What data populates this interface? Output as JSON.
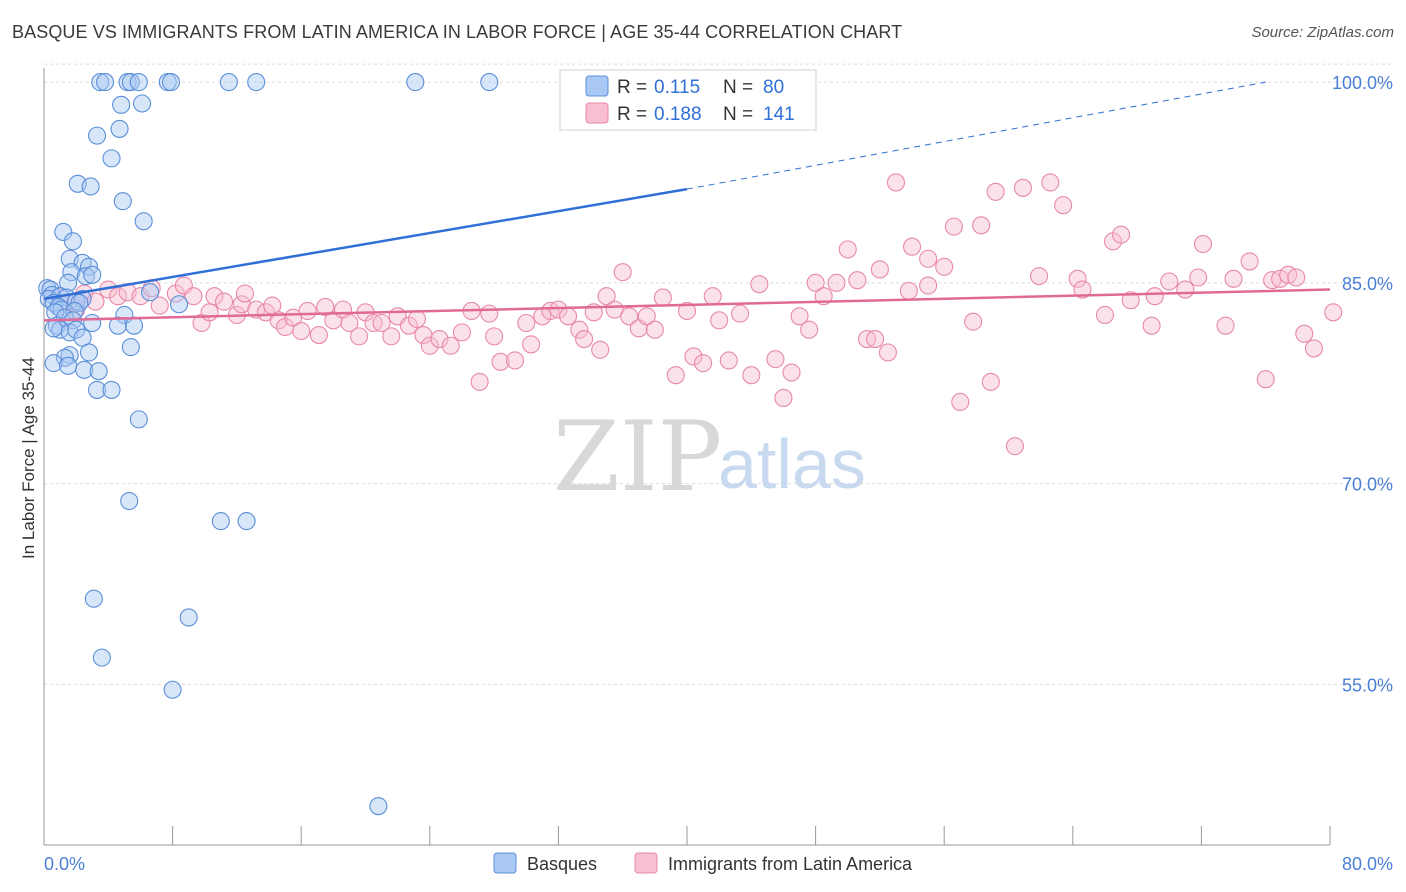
{
  "title": "BASQUE VS IMMIGRANTS FROM LATIN AMERICA IN LABOR FORCE | AGE 35-44 CORRELATION CHART",
  "source": "Source: ZipAtlas.com",
  "watermark": {
    "zip": "ZIP",
    "atlas": "atlas"
  },
  "colors": {
    "basques_fill": "#a9c8f3",
    "basques_stroke": "#5b8fd8",
    "basques_line": "#2f6fd6",
    "latin_fill": "#f7bfd1",
    "latin_stroke": "#e889a9",
    "latin_line": "#e06a96",
    "grid": "#dcdcdc",
    "axis_label": "#4a7fd6"
  },
  "legend": {
    "r_label": "R =",
    "n_label": "N =",
    "basques": {
      "r": "0.115",
      "n": "80"
    },
    "latin": {
      "r": "0.188",
      "n": "141"
    }
  },
  "chart_data": {
    "type": "scatter",
    "title": "BASQUE VS IMMIGRANTS FROM LATIN AMERICA IN LABOR FORCE | AGE 35-44 CORRELATION CHART",
    "xlabel": "",
    "ylabel": "In Labor Force | Age 35-44",
    "xlim": [
      0,
      80
    ],
    "ylim": [
      43,
      101.5
    ],
    "x_tick_labels": [
      "0.0%",
      "80.0%"
    ],
    "y_ticks": [
      55,
      70,
      85,
      100
    ],
    "y_tick_labels": [
      "55.0%",
      "70.0%",
      "85.0%",
      "100.0%"
    ],
    "grid": true,
    "legend_position": "top-center",
    "series": [
      {
        "name": "Basques",
        "trend": {
          "x0": 0,
          "y0": 83.8,
          "x1": 40,
          "y1": 92.0,
          "dashed_to_x": 76,
          "dashed_to_y": 100.0
        },
        "points": [
          [
            3.5,
            100
          ],
          [
            3.8,
            100
          ],
          [
            5.2,
            100
          ],
          [
            5.4,
            100
          ],
          [
            5.9,
            100
          ],
          [
            7.7,
            100
          ],
          [
            7.9,
            100
          ],
          [
            11.5,
            100
          ],
          [
            13.2,
            100
          ],
          [
            23.1,
            100
          ],
          [
            27.7,
            100
          ],
          [
            33.2,
            100
          ],
          [
            4.8,
            98.3
          ],
          [
            6.1,
            98.4
          ],
          [
            4.7,
            96.5
          ],
          [
            3.3,
            96.0
          ],
          [
            4.2,
            94.3
          ],
          [
            2.1,
            92.4
          ],
          [
            2.9,
            92.2
          ],
          [
            4.9,
            91.1
          ],
          [
            6.2,
            89.6
          ],
          [
            1.2,
            88.8
          ],
          [
            1.8,
            88.1
          ],
          [
            1.6,
            86.8
          ],
          [
            2.4,
            86.5
          ],
          [
            2.8,
            86.2
          ],
          [
            1.7,
            85.8
          ],
          [
            2.6,
            85.5
          ],
          [
            3.0,
            85.6
          ],
          [
            1.5,
            85.0
          ],
          [
            0.2,
            84.6
          ],
          [
            0.4,
            84.5
          ],
          [
            0.5,
            84.1
          ],
          [
            0.3,
            83.8
          ],
          [
            1.0,
            84.0
          ],
          [
            1.4,
            83.9
          ],
          [
            2.0,
            83.6
          ],
          [
            2.4,
            83.8
          ],
          [
            2.2,
            83.5
          ],
          [
            0.6,
            83.5
          ],
          [
            0.9,
            83.2
          ],
          [
            1.1,
            83.0
          ],
          [
            1.9,
            82.9
          ],
          [
            0.7,
            82.8
          ],
          [
            1.3,
            82.4
          ],
          [
            5.0,
            82.6
          ],
          [
            6.6,
            84.3
          ],
          [
            8.4,
            83.4
          ],
          [
            1.8,
            82.2
          ],
          [
            0.8,
            81.8
          ],
          [
            1.0,
            81.5
          ],
          [
            0.6,
            81.6
          ],
          [
            3.0,
            82.0
          ],
          [
            4.6,
            81.8
          ],
          [
            5.6,
            81.8
          ],
          [
            1.6,
            81.3
          ],
          [
            2.0,
            81.5
          ],
          [
            2.4,
            80.9
          ],
          [
            5.4,
            80.2
          ],
          [
            1.6,
            79.6
          ],
          [
            1.3,
            79.4
          ],
          [
            2.8,
            79.8
          ],
          [
            0.6,
            79.0
          ],
          [
            1.5,
            78.8
          ],
          [
            2.5,
            78.5
          ],
          [
            3.4,
            78.4
          ],
          [
            3.3,
            77.0
          ],
          [
            4.2,
            77.0
          ],
          [
            5.9,
            74.8
          ],
          [
            5.3,
            68.7
          ],
          [
            11.0,
            67.2
          ],
          [
            12.6,
            67.2
          ],
          [
            3.1,
            61.4
          ],
          [
            9.0,
            60.0
          ],
          [
            3.6,
            57.0
          ],
          [
            8.0,
            54.6
          ],
          [
            20.8,
            45.9
          ]
        ]
      },
      {
        "name": "Immigrants from Latin America",
        "trend": {
          "x0": 0,
          "y0": 82.2,
          "x1": 80,
          "y1": 84.5
        },
        "points": [
          [
            1.0,
            84.0
          ],
          [
            1.5,
            83.5
          ],
          [
            2.0,
            83.0
          ],
          [
            2.5,
            84.2
          ],
          [
            3.2,
            83.6
          ],
          [
            4.0,
            84.5
          ],
          [
            4.6,
            84.0
          ],
          [
            5.2,
            84.3
          ],
          [
            6.0,
            84.0
          ],
          [
            6.7,
            84.6
          ],
          [
            7.2,
            83.3
          ],
          [
            8.2,
            84.2
          ],
          [
            8.7,
            84.8
          ],
          [
            9.3,
            84.0
          ],
          [
            9.8,
            82.0
          ],
          [
            10.3,
            82.8
          ],
          [
            10.6,
            84.0
          ],
          [
            11.2,
            83.6
          ],
          [
            12.0,
            82.6
          ],
          [
            12.3,
            83.4
          ],
          [
            12.5,
            84.2
          ],
          [
            13.2,
            83.0
          ],
          [
            13.8,
            82.8
          ],
          [
            14.2,
            83.3
          ],
          [
            14.6,
            82.2
          ],
          [
            15.0,
            81.7
          ],
          [
            15.5,
            82.4
          ],
          [
            16.0,
            81.4
          ],
          [
            16.4,
            82.9
          ],
          [
            17.1,
            81.1
          ],
          [
            17.5,
            83.2
          ],
          [
            18.0,
            82.2
          ],
          [
            18.6,
            83.0
          ],
          [
            19.0,
            82.0
          ],
          [
            19.6,
            81.0
          ],
          [
            20.0,
            82.8
          ],
          [
            20.5,
            82.0
          ],
          [
            21.0,
            82.0
          ],
          [
            21.6,
            81.0
          ],
          [
            22.0,
            82.5
          ],
          [
            22.7,
            81.8
          ],
          [
            23.2,
            82.3
          ],
          [
            23.6,
            81.1
          ],
          [
            24.0,
            80.3
          ],
          [
            24.6,
            80.8
          ],
          [
            25.3,
            80.3
          ],
          [
            26.0,
            81.3
          ],
          [
            26.6,
            82.9
          ],
          [
            27.1,
            77.6
          ],
          [
            27.7,
            82.7
          ],
          [
            28.0,
            81.0
          ],
          [
            28.4,
            79.1
          ],
          [
            29.3,
            79.2
          ],
          [
            30.0,
            82.0
          ],
          [
            30.3,
            80.4
          ],
          [
            31.0,
            82.5
          ],
          [
            31.5,
            82.9
          ],
          [
            32.0,
            83.0
          ],
          [
            32.6,
            82.5
          ],
          [
            33.3,
            81.5
          ],
          [
            33.6,
            80.8
          ],
          [
            34.2,
            82.8
          ],
          [
            34.6,
            80.0
          ],
          [
            35.0,
            84.0
          ],
          [
            35.5,
            83.0
          ],
          [
            36.0,
            85.8
          ],
          [
            36.4,
            82.5
          ],
          [
            37.0,
            81.6
          ],
          [
            37.5,
            82.5
          ],
          [
            38.0,
            81.5
          ],
          [
            38.5,
            83.9
          ],
          [
            39.3,
            78.1
          ],
          [
            40.0,
            82.9
          ],
          [
            40.4,
            79.5
          ],
          [
            41.0,
            79.0
          ],
          [
            41.6,
            84.0
          ],
          [
            42.0,
            82.2
          ],
          [
            42.6,
            79.2
          ],
          [
            43.3,
            82.7
          ],
          [
            44.0,
            78.1
          ],
          [
            44.5,
            84.9
          ],
          [
            45.5,
            79.3
          ],
          [
            46.0,
            76.4
          ],
          [
            46.5,
            78.3
          ],
          [
            47.0,
            82.5
          ],
          [
            47.6,
            81.5
          ],
          [
            48.0,
            85.0
          ],
          [
            48.5,
            84.0
          ],
          [
            49.3,
            85.0
          ],
          [
            50.0,
            87.5
          ],
          [
            50.6,
            85.2
          ],
          [
            51.2,
            80.8
          ],
          [
            51.7,
            80.8
          ],
          [
            52.0,
            86.0
          ],
          [
            52.5,
            79.8
          ],
          [
            53.0,
            92.5
          ],
          [
            53.8,
            84.4
          ],
          [
            54.0,
            87.7
          ],
          [
            55.0,
            86.8
          ],
          [
            55.0,
            84.8
          ],
          [
            56.0,
            86.2
          ],
          [
            56.6,
            89.2
          ],
          [
            57.0,
            76.1
          ],
          [
            57.8,
            82.1
          ],
          [
            58.3,
            89.3
          ],
          [
            58.9,
            77.6
          ],
          [
            59.2,
            91.8
          ],
          [
            60.4,
            72.8
          ],
          [
            60.9,
            92.1
          ],
          [
            61.9,
            85.5
          ],
          [
            62.6,
            92.5
          ],
          [
            63.4,
            90.8
          ],
          [
            64.3,
            85.3
          ],
          [
            64.6,
            84.5
          ],
          [
            66.0,
            82.6
          ],
          [
            66.5,
            88.1
          ],
          [
            67.0,
            88.6
          ],
          [
            67.6,
            83.7
          ],
          [
            68.9,
            81.8
          ],
          [
            69.1,
            84.0
          ],
          [
            70.0,
            85.1
          ],
          [
            71.0,
            84.5
          ],
          [
            71.8,
            85.4
          ],
          [
            72.1,
            87.9
          ],
          [
            73.5,
            81.8
          ],
          [
            74.0,
            85.3
          ],
          [
            75.0,
            86.6
          ],
          [
            76.0,
            77.8
          ],
          [
            76.4,
            85.2
          ],
          [
            76.9,
            85.3
          ],
          [
            77.4,
            85.6
          ],
          [
            77.9,
            85.4
          ],
          [
            78.4,
            81.2
          ],
          [
            79.0,
            80.1
          ],
          [
            80.2,
            82.8
          ]
        ]
      }
    ]
  }
}
